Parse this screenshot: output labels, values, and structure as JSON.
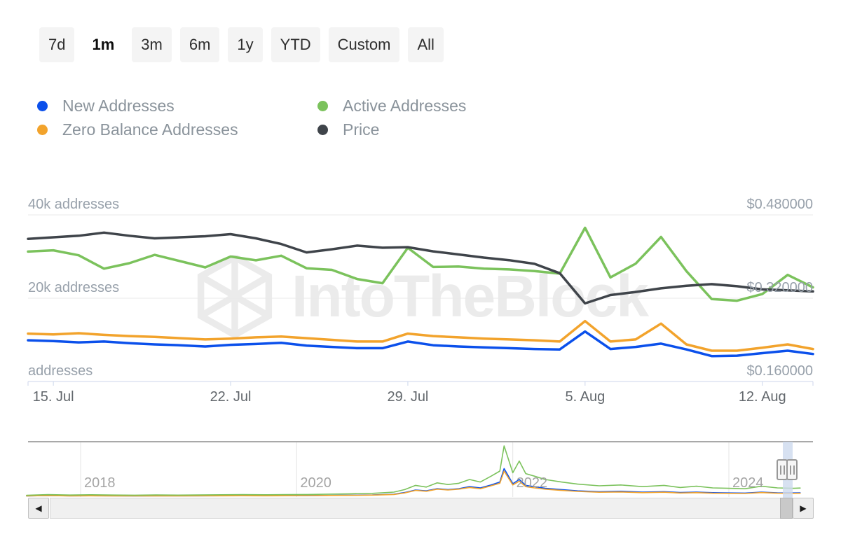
{
  "toolbar": {
    "buttons": [
      {
        "label": "7d",
        "active": false
      },
      {
        "label": "1m",
        "active": true
      },
      {
        "label": "3m",
        "active": false
      },
      {
        "label": "6m",
        "active": false
      },
      {
        "label": "1y",
        "active": false
      },
      {
        "label": "YTD",
        "active": false
      },
      {
        "label": "Custom",
        "active": false
      },
      {
        "label": "All",
        "active": false
      }
    ]
  },
  "legend": {
    "items": [
      {
        "label": "New Addresses",
        "color": "#0b50eb"
      },
      {
        "label": "Zero Balance Addresses",
        "color": "#f2a32c"
      },
      {
        "label": "Active Addresses",
        "color": "#7bc25c"
      },
      {
        "label": "Price",
        "color": "#3f444a"
      }
    ]
  },
  "watermark": {
    "text": "IntoTheBlock"
  },
  "scrollbar": {
    "left_icon": "◀",
    "right_icon": "▶"
  },
  "colors": {
    "background": "#ffffff",
    "grid": "#e9e9e9",
    "axis_line": "#ccd6eb",
    "axis_text": "#98a1ab",
    "date_text": "#62676c",
    "year_text": "#9b9b9b",
    "selection": "#cdd9ee",
    "watermark": "#ebebeb",
    "navigator_border": "#a9a9a9"
  },
  "chart_data": [
    {
      "type": "line",
      "role": "main",
      "title": "",
      "x": [
        "2024-07-14",
        "2024-07-15",
        "2024-07-16",
        "2024-07-17",
        "2024-07-18",
        "2024-07-19",
        "2024-07-20",
        "2024-07-21",
        "2024-07-22",
        "2024-07-23",
        "2024-07-24",
        "2024-07-25",
        "2024-07-26",
        "2024-07-27",
        "2024-07-28",
        "2024-07-29",
        "2024-07-30",
        "2024-07-31",
        "2024-08-01",
        "2024-08-02",
        "2024-08-03",
        "2024-08-04",
        "2024-08-05",
        "2024-08-06",
        "2024-08-07",
        "2024-08-08",
        "2024-08-09",
        "2024-08-10",
        "2024-08-11",
        "2024-08-12",
        "2024-08-13",
        "2024-08-14"
      ],
      "x_tick_indices": [
        1,
        8,
        15,
        22,
        29
      ],
      "x_tick_labels": [
        "15. Jul",
        "22. Jul",
        "29. Jul",
        "5. Aug",
        "12. Aug"
      ],
      "y_left_ticks": [
        40000,
        20000,
        0
      ],
      "y_left_tick_labels": [
        "40k addresses",
        "20k addresses",
        "addresses"
      ],
      "y_right_ticks": [
        0.48,
        0.32,
        0.16
      ],
      "y_right_tick_labels": [
        "$0.480000",
        "$0.320000",
        "$0.160000"
      ],
      "ylim_left": [
        0,
        41000
      ],
      "ylim_right": [
        0.145,
        0.48
      ],
      "grid": true,
      "legend_position": "top",
      "series": [
        {
          "name": "New Addresses",
          "axis": "addresses",
          "unit": "thousands of addresses",
          "color": "#0b50eb",
          "values": [
            9.9,
            9.7,
            9.4,
            9.6,
            9.2,
            8.9,
            8.7,
            8.4,
            8.8,
            9.0,
            9.3,
            8.6,
            8.3,
            8.0,
            8.0,
            9.6,
            8.7,
            8.4,
            8.2,
            8.0,
            7.8,
            7.7,
            12.0,
            7.8,
            8.3,
            9.1,
            7.7,
            6.1,
            6.2,
            6.8,
            7.4,
            6.6
          ]
        },
        {
          "name": "Zero Balance Addresses",
          "axis": "addresses",
          "unit": "thousands of addresses",
          "color": "#f2a32c",
          "values": [
            11.5,
            11.3,
            11.6,
            11.2,
            10.9,
            10.7,
            10.4,
            10.1,
            10.3,
            10.6,
            10.8,
            10.4,
            10.0,
            9.6,
            9.6,
            11.5,
            10.9,
            10.6,
            10.3,
            10.1,
            9.9,
            9.6,
            14.5,
            9.6,
            10.1,
            13.9,
            8.9,
            7.4,
            7.4,
            8.1,
            8.9,
            7.8
          ]
        },
        {
          "name": "Active Addresses",
          "axis": "addresses",
          "unit": "thousands of addresses",
          "color": "#7bc25c",
          "values": [
            31.2,
            31.5,
            30.3,
            27.1,
            28.4,
            30.4,
            28.9,
            27.4,
            30.0,
            29.1,
            30.2,
            27.2,
            26.8,
            24.6,
            23.6,
            32.1,
            27.5,
            27.6,
            27.1,
            26.9,
            26.5,
            25.9,
            36.9,
            25.0,
            28.3,
            34.7,
            26.5,
            19.8,
            19.4,
            21.0,
            25.6,
            22.6
          ]
        },
        {
          "name": "Price",
          "axis": "price",
          "unit": "USD",
          "color": "#3f444a",
          "values": [
            0.434,
            0.437,
            0.44,
            0.446,
            0.44,
            0.435,
            0.437,
            0.439,
            0.443,
            0.435,
            0.424,
            0.408,
            0.414,
            0.421,
            0.417,
            0.418,
            0.41,
            0.404,
            0.398,
            0.393,
            0.386,
            0.368,
            0.31,
            0.326,
            0.332,
            0.339,
            0.344,
            0.347,
            0.343,
            0.337,
            0.335,
            0.333
          ]
        }
      ]
    },
    {
      "type": "line",
      "role": "navigator",
      "x": [
        2017.5,
        2017.7,
        2017.9,
        2018.1,
        2018.3,
        2018.5,
        2018.7,
        2018.9,
        2019.1,
        2019.3,
        2019.5,
        2019.7,
        2019.9,
        2020.1,
        2020.3,
        2020.5,
        2020.7,
        2020.9,
        2021.0,
        2021.1,
        2021.2,
        2021.3,
        2021.4,
        2021.5,
        2021.6,
        2021.7,
        2021.8,
        2021.88,
        2021.92,
        2022.0,
        2022.06,
        2022.12,
        2022.2,
        2022.3,
        2022.45,
        2022.6,
        2022.8,
        2023.0,
        2023.2,
        2023.4,
        2023.55,
        2023.7,
        2023.85,
        2024.0,
        2024.15,
        2024.3,
        2024.45,
        2024.6,
        2024.66
      ],
      "x_ticks": [
        2018,
        2020,
        2022,
        2024
      ],
      "x_tick_labels": [
        "2018",
        "2020",
        "2022",
        "2024"
      ],
      "selected_range": [
        2024.53,
        2024.62
      ],
      "series": [
        {
          "name": "New Addresses",
          "unit": "thousands of addresses",
          "color": "#0b50eb",
          "values": [
            0.5,
            0.9,
            0.6,
            0.7,
            0.6,
            0.5,
            0.6,
            0.55,
            0.6,
            0.7,
            0.8,
            0.7,
            0.8,
            0.9,
            1.1,
            1.3,
            1.6,
            2.5,
            4.5,
            7.5,
            6.5,
            9.0,
            8.0,
            9.0,
            11.5,
            10.0,
            13.5,
            17.0,
            33.0,
            15.0,
            20.0,
            13.0,
            11.5,
            9.5,
            8.0,
            6.5,
            5.5,
            6.0,
            5.0,
            5.5,
            4.5,
            5.0,
            4.3,
            4.0,
            3.8,
            5.0,
            4.2,
            4.0,
            4.1
          ]
        },
        {
          "name": "Zero Balance Addresses",
          "unit": "thousands of addresses",
          "color": "#f2a32c",
          "values": [
            0.4,
            0.8,
            0.5,
            0.6,
            0.5,
            0.45,
            0.5,
            0.5,
            0.55,
            0.6,
            0.7,
            0.6,
            0.7,
            0.8,
            1.0,
            1.2,
            1.4,
            2.2,
            4.0,
            7.0,
            6.0,
            8.5,
            7.5,
            8.5,
            10.5,
            9.0,
            12.5,
            15.5,
            30.0,
            13.5,
            18.0,
            11.5,
            10.0,
            8.5,
            7.0,
            5.8,
            4.8,
            5.2,
            4.3,
            4.8,
            3.9,
            4.3,
            3.7,
            3.5,
            3.3,
            4.4,
            3.7,
            3.5,
            3.6
          ]
        },
        {
          "name": "Active Addresses",
          "unit": "thousands of addresses",
          "color": "#7bc25c",
          "values": [
            1.2,
            2.0,
            1.5,
            1.8,
            1.5,
            1.3,
            1.6,
            1.4,
            1.6,
            1.8,
            2.0,
            1.8,
            2.0,
            2.2,
            2.6,
            3.0,
            3.5,
            5.0,
            8.0,
            13.0,
            11.0,
            16.0,
            14.0,
            15.5,
            20.0,
            17.0,
            24.0,
            30.0,
            60.0,
            28.0,
            42.0,
            27.0,
            24.0,
            20.0,
            17.0,
            14.5,
            12.5,
            13.5,
            11.5,
            13.0,
            10.5,
            12.0,
            10.0,
            9.5,
            9.0,
            12.0,
            10.0,
            9.5,
            9.8
          ]
        }
      ]
    }
  ]
}
